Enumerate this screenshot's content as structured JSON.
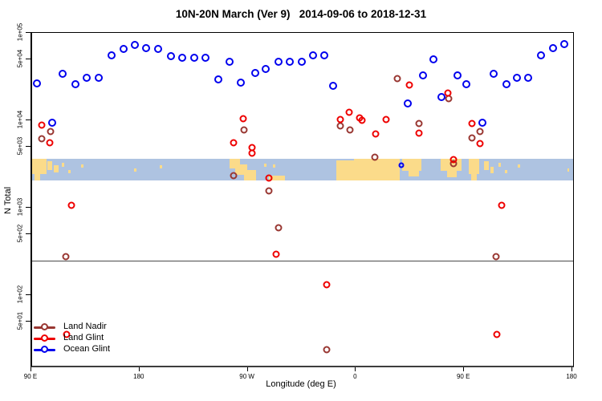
{
  "chart_data": {
    "type": "scatter",
    "title": "10N-20N March (Ver 9)   2014-09-06 to 2018-12-31",
    "xlabel": "Longitude (deg E)",
    "ylabel": "N Total",
    "y_scale": "log",
    "ylim": [
      15,
      100000
    ],
    "x_axis_note": "longitude axis runs 90E eastward around the globe and wraps past 180 twice; stored x = continuous degrees 90-540",
    "xlim": [
      90,
      540
    ],
    "x_ticks": [
      {
        "x": 90,
        "label": "90 E"
      },
      {
        "x": 180,
        "label": "180"
      },
      {
        "x": 270,
        "label": "90 W"
      },
      {
        "x": 360,
        "label": "0"
      },
      {
        "x": 450,
        "label": "90 E"
      },
      {
        "x": 540,
        "label": "180"
      }
    ],
    "y_ticks": [
      {
        "value": 100000,
        "label": "1e+05"
      },
      {
        "value": 50000,
        "label": "5e+04"
      },
      {
        "value": 10000,
        "label": "1e+04"
      },
      {
        "value": 5000,
        "label": "5e+03"
      },
      {
        "value": 1000,
        "label": "1e+03"
      },
      {
        "value": 500,
        "label": "5e+02"
      },
      {
        "value": 100,
        "label": "1e+02"
      },
      {
        "value": 50,
        "label": "5e+01"
      }
    ],
    "reference_line": {
      "value": 250,
      "color": "#4a4a4a"
    },
    "map_strip": {
      "top_value": 3600,
      "bottom_value": 2050,
      "ocean_color": "#AEC3E1",
      "land_color": "#FBDB8A",
      "land_patches": [
        [
          90,
          102,
          0,
          0.7
        ],
        [
          92,
          97,
          0.45,
          1
        ],
        [
          103,
          107,
          0.1,
          0.5
        ],
        [
          108,
          112,
          0.3,
          0.62
        ],
        [
          115,
          117,
          0.18,
          0.35
        ],
        [
          120,
          122,
          0.5,
          0.65
        ],
        [
          131,
          133,
          0.25,
          0.4
        ],
        [
          175,
          177,
          0.45,
          0.6
        ],
        [
          196,
          198,
          0.3,
          0.42
        ],
        [
          254,
          263,
          0,
          0.45
        ],
        [
          259,
          269,
          0.25,
          0.75
        ],
        [
          266,
          276,
          0.5,
          1
        ],
        [
          283,
          285,
          0.2,
          0.35
        ],
        [
          290,
          292,
          0.25,
          0.4
        ],
        [
          287,
          300,
          0.78,
          1
        ],
        [
          343,
          358,
          0.05,
          1
        ],
        [
          358,
          396,
          0,
          1
        ],
        [
          398,
          414,
          0,
          0.55
        ],
        [
          403,
          412,
          0.55,
          0.8
        ],
        [
          430,
          447,
          0,
          0.55
        ],
        [
          435,
          443,
          0.55,
          0.85
        ],
        [
          453,
          462,
          0,
          0.7
        ],
        [
          455,
          460,
          0.6,
          1
        ],
        [
          466,
          470,
          0.1,
          0.5
        ],
        [
          471,
          474,
          0.35,
          0.65
        ],
        [
          478,
          480,
          0.18,
          0.35
        ],
        [
          483,
          485,
          0.5,
          0.65
        ],
        [
          494,
          496,
          0.25,
          0.4
        ],
        [
          535,
          537,
          0.45,
          0.6
        ]
      ]
    },
    "series": [
      {
        "name": "Land Nadir",
        "color": "#993732",
        "marker": "open-circle",
        "points": [
          [
            98,
            6150
          ],
          [
            105.3,
            7450
          ],
          [
            118,
            275
          ],
          [
            257.3,
            2330
          ],
          [
            266,
            7760
          ],
          [
            286.7,
            1560
          ],
          [
            294.7,
            590
          ],
          [
            335.3,
            23.8
          ],
          [
            346.7,
            8630
          ],
          [
            354.7,
            7760
          ],
          [
            375.3,
            3780
          ],
          [
            394,
            30000
          ],
          [
            412,
            9180
          ],
          [
            436.7,
            17700
          ],
          [
            440.7,
            3200
          ],
          [
            456,
            6280
          ],
          [
            462.7,
            7450
          ],
          [
            476,
            275
          ]
        ]
      },
      {
        "name": "Land Glint",
        "color": "#EE0000",
        "marker": "open-circle",
        "points": [
          [
            98,
            8800
          ],
          [
            104.7,
            5530
          ],
          [
            118.7,
            35.5
          ],
          [
            122.7,
            1070
          ],
          [
            257.3,
            5530
          ],
          [
            265.3,
            10400
          ],
          [
            272.7,
            4870
          ],
          [
            272.7,
            4210
          ],
          [
            286.7,
            2180
          ],
          [
            292.7,
            294
          ],
          [
            335.3,
            132
          ],
          [
            346.7,
            10200
          ],
          [
            354,
            12400
          ],
          [
            362.7,
            10600
          ],
          [
            364.7,
            10000
          ],
          [
            376,
            6980
          ],
          [
            384.7,
            10200
          ],
          [
            404,
            25300
          ],
          [
            412,
            7130
          ],
          [
            436,
            20500
          ],
          [
            440.7,
            3550
          ],
          [
            456,
            9180
          ],
          [
            462.7,
            5420
          ],
          [
            476.7,
            35.5
          ],
          [
            480.7,
            1070
          ]
        ]
      },
      {
        "name": "Ocean Glint",
        "color": "#0000EE",
        "marker": "open-circle",
        "points": [
          [
            94,
            26400
          ],
          [
            106.7,
            9380
          ],
          [
            115.3,
            34000
          ],
          [
            126,
            25900
          ],
          [
            135.3,
            30600
          ],
          [
            145.3,
            30600
          ],
          [
            156,
            55300
          ],
          [
            166,
            65600
          ],
          [
            175.3,
            72800
          ],
          [
            184.7,
            67000
          ],
          [
            194.7,
            65600
          ],
          [
            205.3,
            54200
          ],
          [
            214.7,
            52000
          ],
          [
            224.7,
            52000
          ],
          [
            234,
            52000
          ],
          [
            244.7,
            29400
          ],
          [
            254,
            46800
          ],
          [
            263.3,
            27000
          ],
          [
            275.3,
            34800
          ],
          [
            284,
            38600
          ],
          [
            294.7,
            46800
          ],
          [
            304,
            46800
          ],
          [
            314,
            46800
          ],
          [
            324,
            55300
          ],
          [
            333.3,
            55300
          ],
          [
            340.7,
            24800
          ],
          [
            397.3,
            3060,
            "small"
          ],
          [
            402.7,
            15600
          ],
          [
            415.3,
            32700
          ],
          [
            424,
            49800
          ],
          [
            430.7,
            18500
          ],
          [
            444,
            32700
          ],
          [
            451.3,
            25900
          ],
          [
            464.7,
            9380
          ],
          [
            474,
            34000
          ],
          [
            484.7,
            25900
          ],
          [
            493.3,
            30600
          ],
          [
            502.7,
            30600
          ],
          [
            513.3,
            55300
          ],
          [
            523.3,
            67000
          ],
          [
            532.7,
            74500
          ]
        ]
      }
    ],
    "legend": {
      "position": "bottom-left-inside",
      "items": [
        "Land Nadir",
        "Land Glint",
        "Ocean Glint"
      ]
    }
  }
}
